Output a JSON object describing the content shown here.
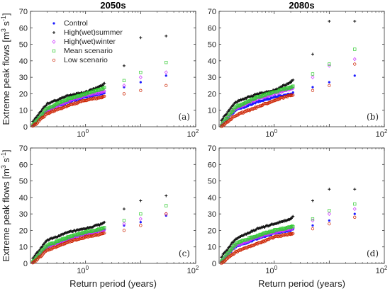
{
  "chart_data": [
    {
      "panel": "(a)",
      "title": "2050s",
      "type": "scatter",
      "xscale": "log",
      "xlim": [
        0.1,
        100
      ],
      "ylim": [
        0,
        70
      ],
      "xticks": [
        "10^0",
        "10^2"
      ],
      "yticks": [
        "0",
        "10",
        "20",
        "30",
        "40",
        "50",
        "60",
        "70"
      ],
      "ylabel": "Extreme peak flows [m^3 s^-1]",
      "xlabel": "",
      "legend": {
        "placement": "top-left",
        "entries": [
          "Control",
          "High(wet)summer",
          "High(wet)winter",
          "Mean scenario",
          "Low scenario"
        ]
      },
      "series": [
        {
          "name": "Control",
          "x": [
            0.11,
            0.2,
            0.5,
            1,
            2,
            5,
            10,
            29
          ],
          "y": [
            1,
            10,
            15,
            18,
            20,
            24,
            27,
            31
          ]
        },
        {
          "name": "High(wet)summer",
          "x": [
            0.11,
            0.2,
            0.5,
            1,
            2,
            5,
            10,
            29
          ],
          "y": [
            3,
            14,
            19,
            21,
            25,
            37,
            54,
            55
          ]
        },
        {
          "name": "High(wet)winter",
          "x": [
            0.11,
            0.2,
            0.5,
            1,
            2,
            5,
            10,
            29
          ],
          "y": [
            1,
            10,
            16,
            19,
            21,
            25,
            30,
            33
          ]
        },
        {
          "name": "Mean scenario",
          "x": [
            0.11,
            0.2,
            0.5,
            1,
            2,
            5,
            10,
            29
          ],
          "y": [
            1,
            11,
            17,
            20,
            23,
            28,
            33,
            39
          ]
        },
        {
          "name": "Low scenario",
          "x": [
            0.11,
            0.2,
            0.5,
            1,
            2,
            5,
            10,
            29
          ],
          "y": [
            0,
            8,
            13,
            16,
            18,
            20,
            22,
            25
          ]
        }
      ]
    },
    {
      "panel": "(b)",
      "title": "2080s",
      "type": "scatter",
      "xscale": "log",
      "xlim": [
        0.1,
        100
      ],
      "ylim": [
        0,
        70
      ],
      "xticks": [
        "10^0",
        "10^2"
      ],
      "yticks": [
        "0",
        "10",
        "20",
        "30",
        "40",
        "50",
        "60",
        "70"
      ],
      "ylabel": "",
      "xlabel": "",
      "series": [
        {
          "name": "Control",
          "x": [
            0.11,
            0.2,
            0.5,
            1,
            2,
            5,
            10,
            29
          ],
          "y": [
            1,
            10,
            15,
            18,
            20,
            24,
            27,
            31
          ]
        },
        {
          "name": "High(wet)summer",
          "x": [
            0.11,
            0.2,
            0.5,
            1,
            2,
            5,
            10,
            29
          ],
          "y": [
            4,
            15,
            20,
            22,
            27,
            44,
            64,
            64
          ]
        },
        {
          "name": "High(wet)winter",
          "x": [
            0.11,
            0.2,
            0.5,
            1,
            2,
            5,
            10,
            29
          ],
          "y": [
            1,
            11,
            17,
            20,
            23,
            30,
            37,
            41
          ]
        },
        {
          "name": "Mean scenario",
          "x": [
            0.11,
            0.2,
            0.5,
            1,
            2,
            5,
            10,
            29
          ],
          "y": [
            1,
            12,
            18,
            21,
            24,
            32,
            38,
            47
          ]
        },
        {
          "name": "Low scenario",
          "x": [
            0.11,
            0.2,
            0.5,
            1,
            2,
            5,
            10,
            29
          ],
          "y": [
            0,
            7,
            12,
            16,
            19,
            22,
            25,
            38
          ]
        }
      ]
    },
    {
      "panel": "(c)",
      "title": "",
      "type": "scatter",
      "xscale": "log",
      "xlim": [
        0.1,
        100
      ],
      "ylim": [
        0,
        70
      ],
      "xticks": [
        "10^0",
        "10^2"
      ],
      "yticks": [
        "0",
        "10",
        "20",
        "30",
        "40",
        "50",
        "60",
        "70"
      ],
      "ylabel": "Extreme peak flows [m^3 s^-1]",
      "xlabel": "Return period (years)",
      "series": [
        {
          "name": "Control",
          "x": [
            0.11,
            0.2,
            0.5,
            1,
            2,
            5,
            10,
            29
          ],
          "y": [
            1,
            10,
            15,
            18,
            20,
            23,
            25,
            29
          ]
        },
        {
          "name": "High(wet)summer",
          "x": [
            0.11,
            0.2,
            0.5,
            1,
            2,
            5,
            10,
            29
          ],
          "y": [
            3,
            14,
            19,
            21,
            24,
            33,
            38,
            41
          ]
        },
        {
          "name": "High(wet)winter",
          "x": [
            0.11,
            0.2,
            0.5,
            1,
            2,
            5,
            10,
            29
          ],
          "y": [
            1,
            10,
            15,
            18,
            20,
            24,
            27,
            30
          ]
        },
        {
          "name": "Mean scenario",
          "x": [
            0.11,
            0.2,
            0.5,
            1,
            2,
            5,
            10,
            29
          ],
          "y": [
            1,
            11,
            16,
            19,
            21,
            26,
            30,
            35
          ]
        },
        {
          "name": "Low scenario",
          "x": [
            0.11,
            0.2,
            0.5,
            1,
            2,
            5,
            10,
            29
          ],
          "y": [
            0,
            8,
            13,
            16,
            18,
            20,
            23,
            30
          ]
        }
      ]
    },
    {
      "panel": "(d)",
      "title": "",
      "type": "scatter",
      "xscale": "log",
      "xlim": [
        0.1,
        100
      ],
      "ylim": [
        0,
        70
      ],
      "xticks": [
        "10^0",
        "10^2"
      ],
      "yticks": [
        "0",
        "10",
        "20",
        "30",
        "40",
        "50",
        "60",
        "70"
      ],
      "ylabel": "",
      "xlabel": "Return period (years)",
      "series": [
        {
          "name": "Control",
          "x": [
            0.11,
            0.2,
            0.5,
            1,
            2,
            5,
            10,
            29
          ],
          "y": [
            1,
            10,
            15,
            18,
            20,
            23,
            26,
            30
          ]
        },
        {
          "name": "High(wet)summer",
          "x": [
            0.11,
            0.2,
            0.5,
            1,
            2,
            5,
            10,
            29
          ],
          "y": [
            4,
            15,
            21,
            24,
            27,
            38,
            45,
            45
          ]
        },
        {
          "name": "High(wet)winter",
          "x": [
            0.11,
            0.2,
            0.5,
            1,
            2,
            5,
            10,
            29
          ],
          "y": [
            1,
            11,
            16,
            19,
            21,
            26,
            30,
            33
          ]
        },
        {
          "name": "Mean scenario",
          "x": [
            0.11,
            0.2,
            0.5,
            1,
            2,
            5,
            10,
            29
          ],
          "y": [
            1,
            12,
            17,
            20,
            22,
            27,
            32,
            36
          ]
        },
        {
          "name": "Low scenario",
          "x": [
            0.11,
            0.2,
            0.5,
            1,
            2,
            5,
            10,
            29
          ],
          "y": [
            0,
            7,
            12,
            16,
            18,
            21,
            24,
            28
          ]
        }
      ]
    }
  ],
  "colors": {
    "Control": "#1a1aff",
    "High(wet)summer": "#111111",
    "High(wet)winter": "#cc33ff",
    "Mean scenario": "#33cc33",
    "Low scenario": "#cc2200"
  },
  "markers": {
    "Control": "dot",
    "High(wet)summer": "plus",
    "High(wet)winter": "diamond",
    "Mean scenario": "square",
    "Low scenario": "circle"
  }
}
